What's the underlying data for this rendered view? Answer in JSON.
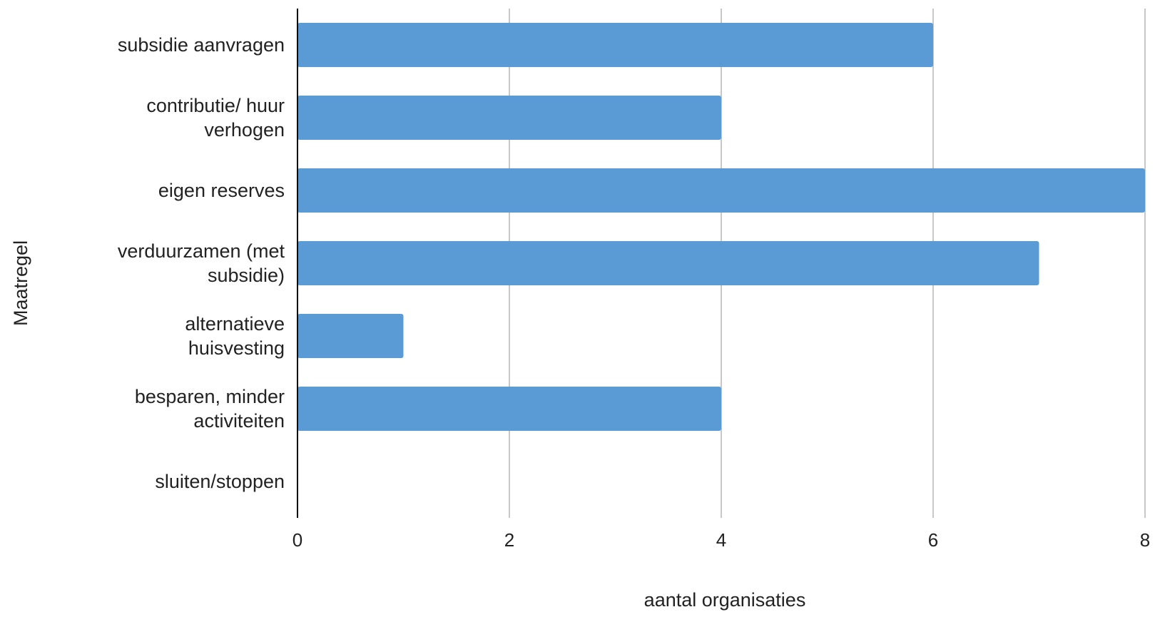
{
  "chart_data": {
    "type": "bar",
    "orientation": "horizontal",
    "categories": [
      "subsidie aanvragen",
      "contributie/ huur verhogen",
      "eigen reserves",
      "verduurzamen (met subsidie)",
      "alternatieve huisvesting",
      "besparen, minder activiteiten",
      "sluiten/stoppen"
    ],
    "category_lines": [
      [
        "subsidie aanvragen"
      ],
      [
        "contributie/ huur",
        "verhogen"
      ],
      [
        "eigen reserves"
      ],
      [
        "verduurzamen (met",
        "subsidie)"
      ],
      [
        "alternatieve",
        "huisvesting"
      ],
      [
        "besparen, minder",
        "activiteiten"
      ],
      [
        "sluiten/stoppen"
      ]
    ],
    "values": [
      6,
      4,
      8,
      7,
      1,
      4,
      0
    ],
    "xlabel": "aantal organisaties",
    "ylabel": "Maatregel",
    "xlim": [
      0,
      8
    ],
    "xticks": [
      0,
      2,
      4,
      6,
      8
    ],
    "grid": "vertical",
    "legend": "none",
    "colors": {
      "bar": "#5b9bd5",
      "grid": "#c8c8c8",
      "axis": "#000000"
    }
  }
}
